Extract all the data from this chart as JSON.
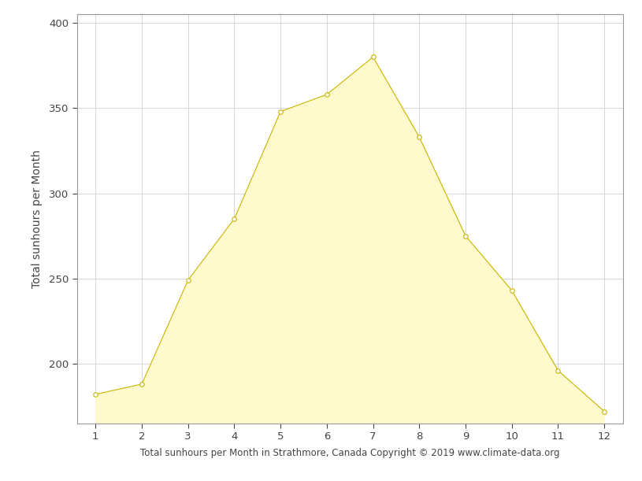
{
  "months": [
    1,
    2,
    3,
    4,
    5,
    6,
    7,
    8,
    9,
    10,
    11,
    12
  ],
  "sunhours": [
    182,
    188,
    249,
    285,
    348,
    358,
    380,
    333,
    275,
    243,
    196,
    172
  ],
  "fill_color": "#FFFACD",
  "line_color": "#C8B400",
  "marker_color": "#FFFFFF",
  "marker_edge_color": "#C8B400",
  "xlabel": "Total sunhours per Month in Strathmore, Canada Copyright © 2019 www.climate-data.org",
  "ylabel": "Total sunhours per Month",
  "ylim_bottom": 165,
  "ylim_top": 405,
  "xlim": [
    0.6,
    12.4
  ],
  "yticks": [
    200,
    250,
    300,
    350,
    400
  ],
  "xticks": [
    1,
    2,
    3,
    4,
    5,
    6,
    7,
    8,
    9,
    10,
    11,
    12
  ],
  "background_color": "#FFFFFF",
  "grid_color": "#D0D0D0",
  "xlabel_fontsize": 8.5,
  "ylabel_fontsize": 10,
  "tick_fontsize": 9.5
}
